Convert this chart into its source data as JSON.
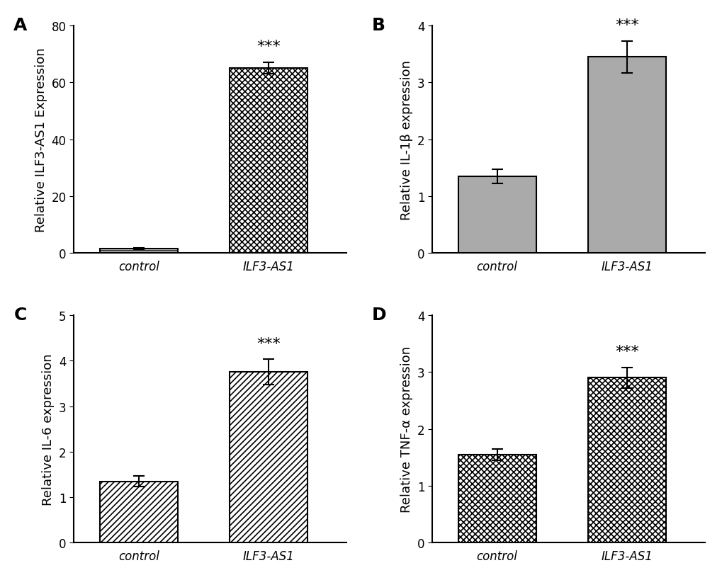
{
  "panels": [
    {
      "label": "A",
      "ylabel": "Relative ILF3-AS1 Expression",
      "categories": [
        "control",
        "ILF3-AS1"
      ],
      "values": [
        1.5,
        65.0
      ],
      "errors": [
        0.3,
        2.0
      ],
      "ylim": [
        0,
        80
      ],
      "yticks": [
        0,
        20,
        40,
        60,
        80
      ],
      "hatch": [
        "------",
        "xxxx"
      ],
      "facecolor": [
        "white",
        "white"
      ],
      "sig_text": "***"
    },
    {
      "label": "B",
      "ylabel": "Relative IL-1β expression",
      "categories": [
        "control",
        "ILF3-AS1"
      ],
      "values": [
        1.35,
        3.45
      ],
      "errors": [
        0.12,
        0.28
      ],
      "ylim": [
        0,
        4
      ],
      "yticks": [
        0,
        1,
        2,
        3,
        4
      ],
      "hatch": [
        "",
        ""
      ],
      "facecolor": [
        "#aaaaaa",
        "#aaaaaa"
      ],
      "sig_text": "***"
    },
    {
      "label": "C",
      "ylabel": "Relative IL-6 expression",
      "categories": [
        "control",
        "ILF3-AS1"
      ],
      "values": [
        1.35,
        3.75
      ],
      "errors": [
        0.12,
        0.28
      ],
      "ylim": [
        0,
        5
      ],
      "yticks": [
        0,
        1,
        2,
        3,
        4,
        5
      ],
      "hatch": [
        "////",
        "////"
      ],
      "facecolor": [
        "white",
        "white"
      ],
      "sig_text": "***"
    },
    {
      "label": "D",
      "ylabel": "Relative TNF-α expression",
      "categories": [
        "control",
        "ILF3-AS1"
      ],
      "values": [
        1.55,
        2.9
      ],
      "errors": [
        0.1,
        0.18
      ],
      "ylim": [
        0,
        4
      ],
      "yticks": [
        0,
        1,
        2,
        3,
        4
      ],
      "hatch": [
        "xxxx",
        "xxxx"
      ],
      "facecolor": [
        "white",
        "white"
      ],
      "sig_text": "***"
    }
  ],
  "bar_width": 0.6,
  "background_color": "#ffffff",
  "bar_edgecolor": "#000000",
  "label_fontsize": 13,
  "tick_fontsize": 12,
  "panel_label_fontsize": 18,
  "sig_fontsize": 16,
  "xtick_fontsize": 12,
  "bar_positions": [
    0.5,
    1.5
  ]
}
